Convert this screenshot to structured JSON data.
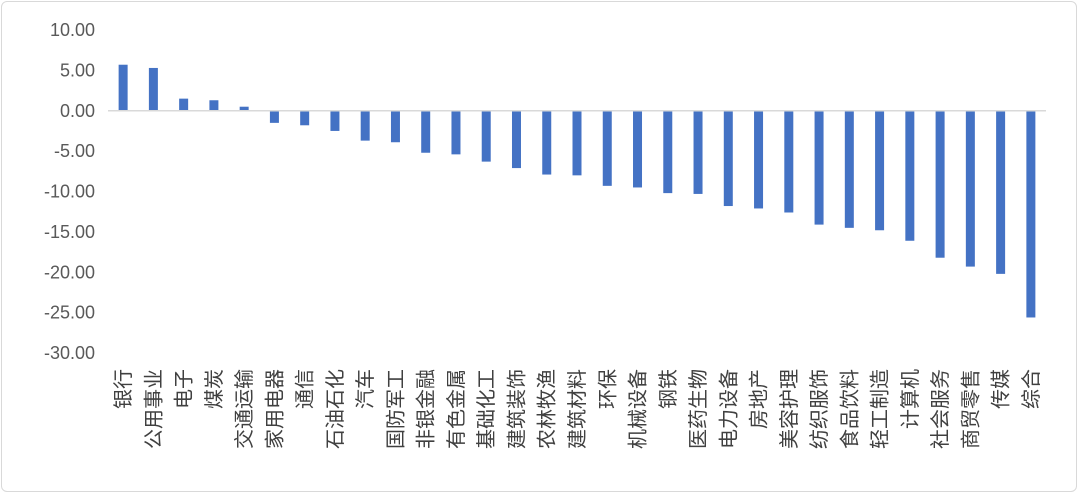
{
  "chart_data": {
    "type": "bar",
    "title": "",
    "xlabel": "",
    "ylabel": "",
    "ylim": [
      -30,
      10
    ],
    "yticks": [
      "10.00",
      "5.00",
      "0.00",
      "-5.00",
      "-10.00",
      "-15.00",
      "-20.00",
      "-25.00",
      "-30.00"
    ],
    "grid": false,
    "legend": "none",
    "bar_color": "#4472c4",
    "axis_color": "#d9d9d9",
    "categories": [
      "银行",
      "公用事业",
      "电子",
      "煤炭",
      "交通运输",
      "家用电器",
      "通信",
      "石油石化",
      "汽车",
      "国防军工",
      "非银金融",
      "有色金属",
      "基础化工",
      "建筑装饰",
      "农林牧渔",
      "建筑材料",
      "环保",
      "机械设备",
      "钢铁",
      "医药生物",
      "电力设备",
      "房地产",
      "美容护理",
      "纺织服饰",
      "食品饮料",
      "轻工制造",
      "计算机",
      "社会服务",
      "商贸零售",
      "传媒",
      "综合"
    ],
    "values": [
      5.7,
      5.3,
      1.5,
      1.3,
      0.5,
      -1.5,
      -1.8,
      -2.5,
      -3.7,
      -3.9,
      -5.2,
      -5.4,
      -6.3,
      -7.1,
      -7.9,
      -8.0,
      -9.3,
      -9.5,
      -10.2,
      -10.3,
      -11.8,
      -12.1,
      -12.6,
      -14.1,
      -14.5,
      -14.8,
      -16.1,
      -18.2,
      -19.3,
      -20.2,
      -25.6
    ]
  }
}
